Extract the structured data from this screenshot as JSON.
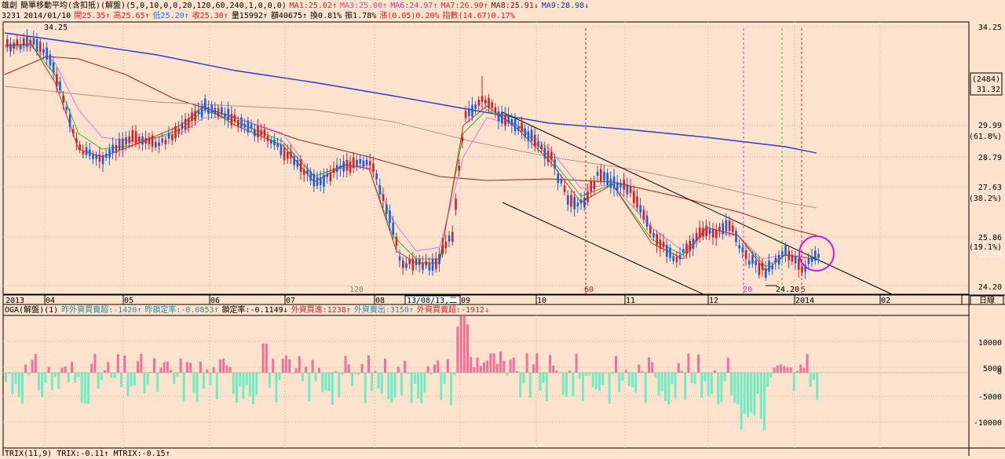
{
  "main_header": {
    "stock_name": "雄創",
    "indicator": "簡單移動平均(含扣抵)(解盤)(5,0,10,0,0,20,120,60,240,1,0,0,0)",
    "ma_values": [
      {
        "text": "MA1:25.02↑",
        "color": "#d0202a"
      },
      {
        "text": "MA3:25.00↑",
        "color": "#e8458c"
      },
      {
        "text": "MA6:24.97↑",
        "color": "#c02db8"
      },
      {
        "text": "MA7:26.90↑",
        "color": "#b2343c"
      },
      {
        "text": "MA8:25.91↓",
        "color": "#7a0a1a"
      },
      {
        "text": "MA9:28.98↓",
        "color": "#1a2ad2"
      }
    ]
  },
  "info_line": {
    "code": "3231",
    "date": "2014/01/10",
    "items": [
      {
        "text": "開25.35↑",
        "color": "#d0202a"
      },
      {
        "text": "高25.65↑",
        "color": "#d0202a"
      },
      {
        "text": "低25.20↑",
        "color": "#2a6ad8"
      },
      {
        "text": "收25.30↑",
        "color": "#d0202a"
      },
      {
        "text": "量15992↑",
        "color": "#000000"
      },
      {
        "text": "額40675↑",
        "color": "#000000"
      },
      {
        "text": "換0.81%",
        "color": "#000000"
      },
      {
        "text": "振1.78%",
        "color": "#000000"
      },
      {
        "text": "漲(0.05)0.20%",
        "color": "#d0202a"
      },
      {
        "text": "指數(14.67)0.17%",
        "color": "#d0202a"
      }
    ]
  },
  "price_axis": {
    "labels": [
      {
        "value": "34.25",
        "sub": ""
      },
      {
        "value": "29.99",
        "sub": "(61.8%)"
      },
      {
        "value": "28.79",
        "sub": ""
      },
      {
        "value": "27.63",
        "sub": "(38.2%)"
      },
      {
        "value": "25.86",
        "sub": "(19.1%)"
      },
      {
        "value": "24.20",
        "sub": ""
      }
    ],
    "current_box_top": "(2484)",
    "current_box_value": "31.32",
    "last_price": "25.30"
  },
  "annotations": {
    "high_label": "34.25",
    "low_label": "24.20",
    "period_120": "120",
    "period_60": "60",
    "period_20": "20",
    "period_5": "5"
  },
  "time_axis": {
    "year_start": "2013",
    "labels": [
      "04",
      "05",
      "06",
      "07",
      "08",
      "09",
      "10",
      "11",
      "12",
      "2014",
      "02"
    ],
    "cursor_label": "13/08/13,二",
    "unit_button": "日線"
  },
  "sub_header": {
    "name": "OGA(解盤)(1)",
    "items": [
      {
        "text": "昨外資買賣超:-1420↑",
        "color": "#2a8aa8"
      },
      {
        "text": "昨鎖定率:-0.0853↑",
        "color": "#2a8aa8"
      },
      {
        "text": "鎖定率:-0.1149↓",
        "color": "#000000"
      },
      {
        "text": "外資買進:1238↑",
        "color": "#d0202a"
      },
      {
        "text": "外資賣出:3150↑",
        "color": "#2a8aa8"
      },
      {
        "text": "外資買賣超:-1912↓",
        "color": "#d0202a"
      }
    ]
  },
  "volume_axis": {
    "labels": [
      "10000",
      "5000",
      "0",
      "-5000",
      "-10000"
    ]
  },
  "footer_line": {
    "text": "TRIX(11,9) TRIX:-0.11↑ MTRIX:-0.15↑"
  },
  "chart_data": {
    "type": "candlestick",
    "price_range": [
      24.2,
      34.25
    ],
    "volume_range": [
      -13000,
      10500
    ],
    "grid": true
  },
  "colors": {
    "background": "#fde3cd",
    "up": "#d0202a",
    "down": "#1a5fd8",
    "bar_pos": "#f0709a",
    "bar_neg": "#70ecc4"
  }
}
